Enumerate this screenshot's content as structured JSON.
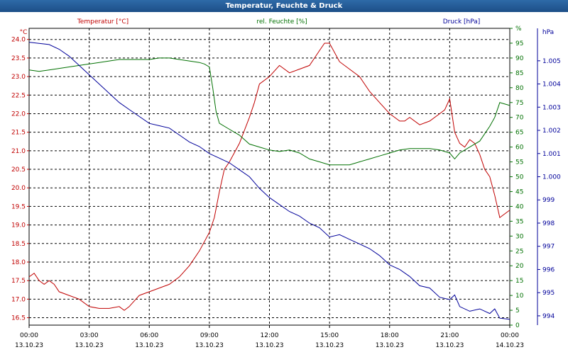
{
  "window": {
    "title": "Temperatur, Feuchte & Druck"
  },
  "colors": {
    "temperature": "#c00000",
    "humidity": "#007000",
    "pressure": "#00009a",
    "title_bg": "#1d4f87"
  },
  "chart_data": {
    "type": "line",
    "title": "Temperatur, Feuchte & Druck",
    "x_ticks": [
      {
        "time": "00:00",
        "date": "13.10.23"
      },
      {
        "time": "03:00",
        "date": "13.10.23"
      },
      {
        "time": "06:00",
        "date": "13.10.23"
      },
      {
        "time": "09:00",
        "date": "13.10.23"
      },
      {
        "time": "12:00",
        "date": "13.10.23"
      },
      {
        "time": "15:00",
        "date": "13.10.23"
      },
      {
        "time": "18:00",
        "date": "13.10.23"
      },
      {
        "time": "21:00",
        "date": "13.10.23"
      },
      {
        "time": "00:00",
        "date": "14.10.23"
      }
    ],
    "xlim": [
      "13.10.23 00:00",
      "14.10.23 00:00"
    ],
    "grid": true,
    "axes": {
      "temperature": {
        "label": "Temperatur [°C]",
        "unit": "°C",
        "ylim": [
          16.3,
          24.3
        ],
        "ticks": [
          "16.5",
          "17.0",
          "17.5",
          "18.0",
          "18.5",
          "19.0",
          "19.5",
          "20.0",
          "20.5",
          "21.0",
          "21.5",
          "22.0",
          "22.5",
          "23.0",
          "23.5",
          "24.0"
        ]
      },
      "humidity": {
        "label": "rel. Feuchte [%]",
        "unit": "%",
        "ylim": [
          0,
          100
        ],
        "ticks": [
          "0",
          "5",
          "10",
          "15",
          "20",
          "25",
          "30",
          "35",
          "40",
          "45",
          "50",
          "55",
          "60",
          "65",
          "70",
          "75",
          "80",
          "85",
          "90",
          "95",
          "%"
        ]
      },
      "pressure": {
        "label": "Druck [hPa]",
        "unit": "hPa",
        "ylim": [
          993.6,
          1006.4
        ],
        "ticks": [
          "994",
          "995",
          "996",
          "997",
          "998",
          "999",
          "1.000",
          "1.001",
          "1.002",
          "1.003",
          "1.004",
          "1.005"
        ]
      }
    },
    "series": [
      {
        "name": "Temperatur [°C]",
        "axis": "temperature",
        "color": "#c00000",
        "x": [
          "00:00",
          "00:15",
          "00:30",
          "00:45",
          "01:00",
          "01:15",
          "01:30",
          "02:00",
          "02:30",
          "03:00",
          "03:30",
          "04:00",
          "04:30",
          "04:45",
          "05:00",
          "05:30",
          "06:00",
          "06:30",
          "07:00",
          "07:30",
          "08:00",
          "08:30",
          "09:00",
          "09:15",
          "09:30",
          "09:45",
          "10:00",
          "10:30",
          "11:00",
          "11:15",
          "11:30",
          "12:00",
          "12:30",
          "13:00",
          "13:30",
          "14:00",
          "14:15",
          "14:30",
          "14:45",
          "15:00",
          "15:30",
          "16:00",
          "16:30",
          "17:00",
          "17:30",
          "18:00",
          "18:30",
          "18:45",
          "19:00",
          "19:30",
          "20:00",
          "20:30",
          "20:45",
          "21:00",
          "21:15",
          "21:30",
          "21:45",
          "22:00",
          "22:15",
          "22:30",
          "22:45",
          "23:00",
          "23:15",
          "23:30",
          "24:00"
        ],
        "values": [
          17.6,
          17.7,
          17.5,
          17.4,
          17.5,
          17.4,
          17.2,
          17.1,
          17.0,
          16.8,
          16.75,
          16.75,
          16.8,
          16.7,
          16.8,
          17.1,
          17.2,
          17.3,
          17.4,
          17.6,
          17.9,
          18.3,
          18.8,
          19.2,
          19.9,
          20.5,
          20.7,
          21.2,
          21.9,
          22.3,
          22.8,
          23.0,
          23.3,
          23.1,
          23.2,
          23.3,
          23.5,
          23.7,
          23.9,
          23.9,
          23.4,
          23.2,
          23.0,
          22.6,
          22.3,
          22.0,
          21.8,
          21.8,
          21.9,
          21.7,
          21.8,
          22.0,
          22.1,
          22.4,
          21.5,
          21.2,
          21.1,
          21.3,
          21.2,
          20.9,
          20.5,
          20.3,
          19.8,
          19.2,
          19.4
        ]
      },
      {
        "name": "rel. Feuchte [%]",
        "axis": "humidity",
        "color": "#007000",
        "x": [
          "00:00",
          "00:30",
          "01:00",
          "01:30",
          "02:00",
          "02:30",
          "03:00",
          "03:30",
          "04:00",
          "04:30",
          "05:00",
          "05:30",
          "06:00",
          "06:30",
          "07:00",
          "07:30",
          "08:00",
          "08:30",
          "08:45",
          "09:00",
          "09:10",
          "09:20",
          "09:30",
          "10:00",
          "10:30",
          "11:00",
          "11:30",
          "12:00",
          "12:30",
          "13:00",
          "13:30",
          "14:00",
          "14:30",
          "15:00",
          "15:30",
          "16:00",
          "16:30",
          "17:00",
          "17:30",
          "18:00",
          "18:30",
          "19:00",
          "19:30",
          "20:00",
          "20:30",
          "21:00",
          "21:15",
          "21:30",
          "22:00",
          "22:30",
          "23:00",
          "23:15",
          "23:30",
          "24:00"
        ],
        "values": [
          86,
          85.5,
          86,
          86.5,
          87,
          87.5,
          88,
          88.5,
          89,
          89.5,
          89.5,
          89.5,
          89.5,
          90,
          90,
          89.5,
          89,
          88.5,
          88,
          87,
          80,
          72,
          68,
          66,
          64,
          61,
          60,
          59,
          58.5,
          59,
          58,
          56,
          55,
          54,
          54,
          54,
          55,
          56,
          57,
          58,
          59,
          59.5,
          59.5,
          59.5,
          59,
          58,
          56,
          58,
          60,
          62,
          67,
          70,
          75,
          74
        ]
      },
      {
        "name": "Druck [hPa]",
        "axis": "pressure",
        "color": "#00009a",
        "x": [
          "00:00",
          "00:30",
          "01:00",
          "01:30",
          "02:00",
          "02:30",
          "03:00",
          "03:30",
          "04:00",
          "04:30",
          "05:00",
          "05:30",
          "06:00",
          "06:30",
          "07:00",
          "07:30",
          "08:00",
          "08:30",
          "09:00",
          "09:30",
          "10:00",
          "10:30",
          "11:00",
          "11:30",
          "12:00",
          "12:30",
          "13:00",
          "13:30",
          "14:00",
          "14:30",
          "15:00",
          "15:30",
          "16:00",
          "16:30",
          "17:00",
          "17:30",
          "18:00",
          "18:30",
          "19:00",
          "19:30",
          "20:00",
          "20:30",
          "21:00",
          "21:15",
          "21:30",
          "22:00",
          "22:30",
          "23:00",
          "23:15",
          "23:30",
          "24:00"
        ],
        "values": [
          1005.8,
          1005.75,
          1005.7,
          1005.5,
          1005.2,
          1004.8,
          1004.4,
          1004.0,
          1003.6,
          1003.2,
          1002.9,
          1002.6,
          1002.3,
          1002.2,
          1002.1,
          1001.8,
          1001.5,
          1001.3,
          1001.0,
          1000.8,
          1000.6,
          1000.3,
          1000.0,
          999.5,
          999.1,
          998.8,
          998.5,
          998.3,
          998.0,
          997.8,
          997.4,
          997.5,
          997.3,
          997.1,
          996.9,
          996.6,
          996.2,
          996.0,
          995.7,
          995.3,
          995.2,
          994.8,
          994.7,
          994.9,
          994.4,
          994.2,
          994.3,
          994.1,
          994.3,
          993.9,
          993.85
        ]
      }
    ]
  }
}
